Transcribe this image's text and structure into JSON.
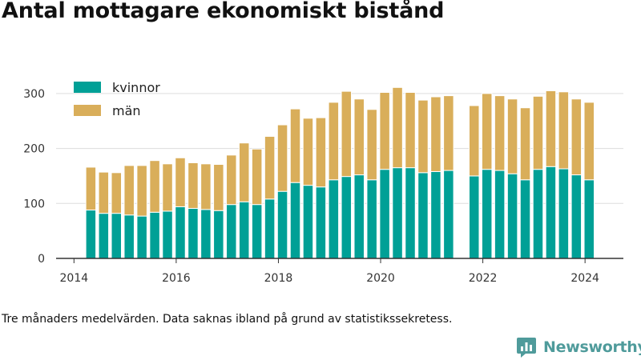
{
  "title": "Antal mottagare ekonomiskt bistånd",
  "caption": "Tre månaders medelvärden. Data saknas ibland på grund av statistikssekretess.",
  "brand": "Newsworthy",
  "colors": {
    "kvinnor": "#00a096",
    "man": "#d9ae5a",
    "grid": "#dddddd",
    "axis": "#333333",
    "brand": "#4f9b9b"
  },
  "chart_data": {
    "type": "bar",
    "stacked": true,
    "title": "Antal mottagare ekonomiskt bistånd",
    "xlabel": "",
    "ylabel": "",
    "xlim": [
      2013.65,
      2024.75
    ],
    "ylim": [
      0,
      310
    ],
    "x_ticks": [
      2014,
      2016,
      2018,
      2020,
      2022,
      2024
    ],
    "y_ticks": [
      0,
      100,
      200,
      300
    ],
    "grid": "horizontal",
    "legend": {
      "position": "top-left",
      "entries": [
        "kvinnor",
        "män"
      ]
    },
    "x": [
      2014.33,
      2014.58,
      2014.83,
      2015.08,
      2015.33,
      2015.58,
      2015.83,
      2016.08,
      2016.33,
      2016.58,
      2016.83,
      2017.08,
      2017.33,
      2017.58,
      2017.83,
      2018.08,
      2018.33,
      2018.58,
      2018.83,
      2019.08,
      2019.33,
      2019.58,
      2019.83,
      2020.08,
      2020.33,
      2020.58,
      2020.83,
      2021.08,
      2021.33,
      2021.83,
      2022.08,
      2022.33,
      2022.58,
      2022.83,
      2023.08,
      2023.33,
      2023.58,
      2023.83,
      2024.08
    ],
    "series": [
      {
        "name": "kvinnor",
        "color": "#00a096",
        "values": [
          88,
          82,
          82,
          79,
          77,
          84,
          86,
          94,
          91,
          89,
          87,
          98,
          103,
          98,
          108,
          122,
          138,
          133,
          130,
          143,
          149,
          152,
          143,
          162,
          165,
          165,
          156,
          158,
          160,
          150,
          162,
          160,
          154,
          143,
          162,
          167,
          163,
          152,
          143
        ]
      },
      {
        "name": "män",
        "color": "#d9ae5a",
        "values": [
          78,
          75,
          74,
          90,
          92,
          94,
          86,
          89,
          83,
          83,
          84,
          90,
          107,
          101,
          114,
          121,
          134,
          122,
          126,
          141,
          155,
          138,
          128,
          140,
          146,
          137,
          132,
          136,
          136,
          128,
          138,
          136,
          136,
          131,
          133,
          138,
          140,
          138,
          141
        ]
      }
    ]
  }
}
